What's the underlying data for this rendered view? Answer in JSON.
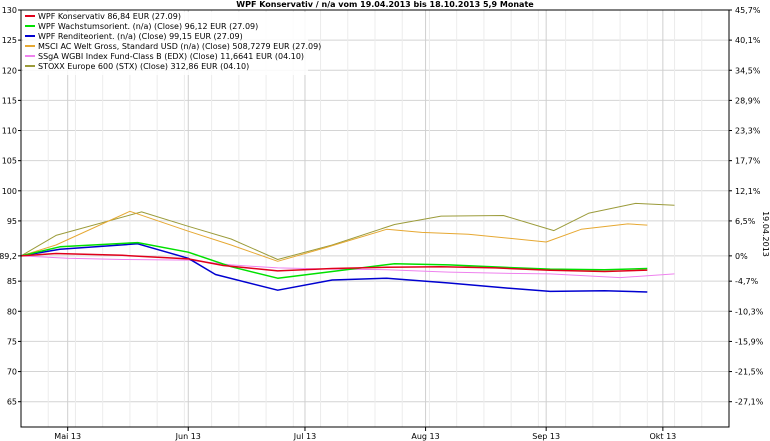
{
  "chart_data": {
    "type": "line",
    "title": "WPF Konservativ / n/a vom 19.04.2013 bis 18.10.2013 5,9 Monate",
    "y_left_ticks": [
      130,
      125,
      120,
      115,
      110,
      105,
      100,
      95,
      89.2,
      85,
      80,
      75,
      70,
      65
    ],
    "y_left_tick_labels": [
      "130",
      "125",
      "120",
      "115",
      "110",
      "105",
      "100",
      "95",
      "89,2",
      "85",
      "80",
      "75",
      "70",
      "65"
    ],
    "y_right_ticks": [
      45.7,
      40.1,
      34.5,
      28.9,
      23.3,
      17.7,
      12.1,
      6.5,
      0,
      -4.7,
      -10.3,
      -15.9,
      -21.5,
      -27.1
    ],
    "y_right_tick_labels": [
      "45,7%",
      "40,1%",
      "34,5%",
      "28,9%",
      "23,3%",
      "17,7%",
      "12,1%",
      "6,5%",
      "0%",
      "-4,7%",
      "-10,3%",
      "-15,9%",
      "-21,5%",
      "-27,1%"
    ],
    "ylim": [
      60.8,
      130
    ],
    "x_range": [
      "2013-04-19",
      "2013-10-18"
    ],
    "x_ticks": [
      {
        "label": "Mai 13",
        "date": "2013-05-01"
      },
      {
        "label": "Jun 13",
        "date": "2013-06-01"
      },
      {
        "label": "Jul 13",
        "date": "2013-07-01"
      },
      {
        "label": "Aug 13",
        "date": "2013-08-01"
      },
      {
        "label": "Sep 13",
        "date": "2013-09-01"
      },
      {
        "label": "Okt 13",
        "date": "2013-10-01"
      }
    ],
    "right_axis_label": "19.04.2013",
    "grid": true,
    "legend_position": "top-left",
    "series": [
      {
        "name": "WPF Konservativ 86,84 EUR (27.09)",
        "color": "#e0001b",
        "width": 1.5,
        "points": [
          [
            "2013-04-19",
            89.2
          ],
          [
            "2013-04-28",
            89.6
          ],
          [
            "2013-05-15",
            89.3
          ],
          [
            "2013-06-01",
            88.7
          ],
          [
            "2013-06-10",
            87.6
          ],
          [
            "2013-06-24",
            86.7
          ],
          [
            "2013-07-08",
            87.1
          ],
          [
            "2013-07-22",
            87.3
          ],
          [
            "2013-08-05",
            87.4
          ],
          [
            "2013-08-19",
            87.2
          ],
          [
            "2013-09-02",
            86.8
          ],
          [
            "2013-09-16",
            86.6
          ],
          [
            "2013-09-27",
            86.84
          ]
        ]
      },
      {
        "name": "WPF Wachstumsorient. (n/a) (Close) 96,12 EUR (27.09)",
        "color": "#00e000",
        "width": 1.5,
        "points": [
          [
            "2013-04-19",
            89.2
          ],
          [
            "2013-04-29",
            90.7
          ],
          [
            "2013-05-19",
            91.4
          ],
          [
            "2013-06-01",
            89.8
          ],
          [
            "2013-06-12",
            87.4
          ],
          [
            "2013-06-24",
            85.5
          ],
          [
            "2013-07-08",
            86.6
          ],
          [
            "2013-07-24",
            87.9
          ],
          [
            "2013-08-07",
            87.7
          ],
          [
            "2013-08-21",
            87.3
          ],
          [
            "2013-09-02",
            87.0
          ],
          [
            "2013-09-16",
            86.9
          ],
          [
            "2013-09-27",
            87.1
          ]
        ]
      },
      {
        "name": "WPF Renditeorient. (n/a) (Close) 99,15 EUR (27.09)",
        "color": "#0000d0",
        "width": 1.5,
        "points": [
          [
            "2013-04-19",
            89.2
          ],
          [
            "2013-04-29",
            90.3
          ],
          [
            "2013-05-19",
            91.2
          ],
          [
            "2013-06-01",
            88.8
          ],
          [
            "2013-06-08",
            86.1
          ],
          [
            "2013-06-24",
            83.5
          ],
          [
            "2013-07-08",
            85.2
          ],
          [
            "2013-07-22",
            85.5
          ],
          [
            "2013-08-07",
            84.7
          ],
          [
            "2013-08-21",
            83.9
          ],
          [
            "2013-09-02",
            83.3
          ],
          [
            "2013-09-16",
            83.4
          ],
          [
            "2013-09-27",
            83.2
          ]
        ]
      },
      {
        "name": "MSCI AC Welt Gross, Standard USD (n/a) (Close) 508,7279 EUR (27.09)",
        "color": "#e6a832",
        "width": 1,
        "points": [
          [
            "2013-04-19",
            89.2
          ],
          [
            "2013-04-28",
            91.0
          ],
          [
            "2013-05-17",
            96.6
          ],
          [
            "2013-06-01",
            93.3
          ],
          [
            "2013-06-12",
            91.0
          ],
          [
            "2013-06-24",
            88.3
          ],
          [
            "2013-07-06",
            90.5
          ],
          [
            "2013-07-22",
            93.6
          ],
          [
            "2013-07-31",
            93.1
          ],
          [
            "2013-08-12",
            92.8
          ],
          [
            "2013-09-01",
            91.5
          ],
          [
            "2013-09-10",
            93.6
          ],
          [
            "2013-09-22",
            94.5
          ],
          [
            "2013-09-27",
            94.3
          ]
        ]
      },
      {
        "name": "SSgA WGBI Index Fund-Class B (EDX) (Close) 11,6641 EUR (04.10)",
        "color": "#ee82ee",
        "width": 1,
        "points": [
          [
            "2013-04-19",
            89.2
          ],
          [
            "2013-05-01",
            88.8
          ],
          [
            "2013-05-15",
            88.6
          ],
          [
            "2013-06-01",
            88.5
          ],
          [
            "2013-06-12",
            87.7
          ],
          [
            "2013-06-24",
            87.2
          ],
          [
            "2013-07-08",
            87.0
          ],
          [
            "2013-07-22",
            86.9
          ],
          [
            "2013-08-07",
            86.5
          ],
          [
            "2013-08-21",
            86.3
          ],
          [
            "2013-09-02",
            86.2
          ],
          [
            "2013-09-20",
            85.6
          ],
          [
            "2013-10-04",
            86.2
          ]
        ]
      },
      {
        "name": "STOXX Europe 600 (STX) (Close) 312,86 EUR (04.10)",
        "color": "#9b9b3a",
        "width": 1,
        "points": [
          [
            "2013-04-19",
            89.2
          ],
          [
            "2013-04-28",
            92.6
          ],
          [
            "2013-05-20",
            96.5
          ],
          [
            "2013-06-01",
            94.1
          ],
          [
            "2013-06-12",
            92.0
          ],
          [
            "2013-06-24",
            88.6
          ],
          [
            "2013-07-08",
            91.0
          ],
          [
            "2013-07-24",
            94.4
          ],
          [
            "2013-08-05",
            95.8
          ],
          [
            "2013-08-21",
            95.9
          ],
          [
            "2013-09-03",
            93.4
          ],
          [
            "2013-09-12",
            96.3
          ],
          [
            "2013-09-24",
            97.9
          ],
          [
            "2013-10-04",
            97.6
          ]
        ]
      }
    ]
  }
}
